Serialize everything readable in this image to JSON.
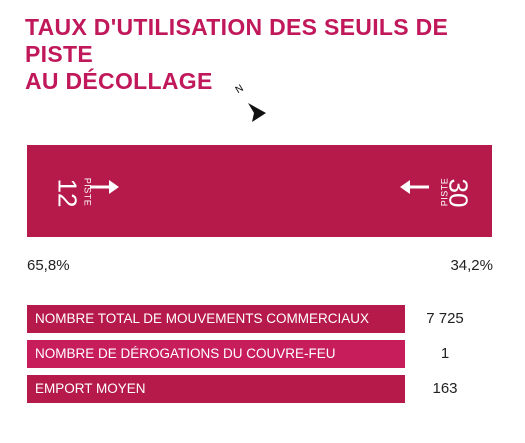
{
  "title": {
    "line1": "TAUX D'UTILISATION DES SEUILS DE PISTE",
    "line2": "AU DÉCOLLAGE"
  },
  "compass": {
    "label": "N",
    "icon": "north-arrow-icon"
  },
  "runway": {
    "color": "#b51a4b",
    "left": {
      "word": "PISTE",
      "number": "12",
      "share": "65,8%"
    },
    "right": {
      "word": "PISTE",
      "number": "30",
      "share": "34,2%"
    }
  },
  "stats": [
    {
      "label": "NOMBRE TOTAL DE MOUVEMENTS COMMERCIAUX",
      "value": "7 725"
    },
    {
      "label": "NOMBRE DE DÉROGATIONS DU COUVRE-FEU",
      "value": "1"
    },
    {
      "label": "EMPORT MOYEN",
      "value": "163"
    }
  ],
  "colors": {
    "accent": "#c0185a"
  }
}
